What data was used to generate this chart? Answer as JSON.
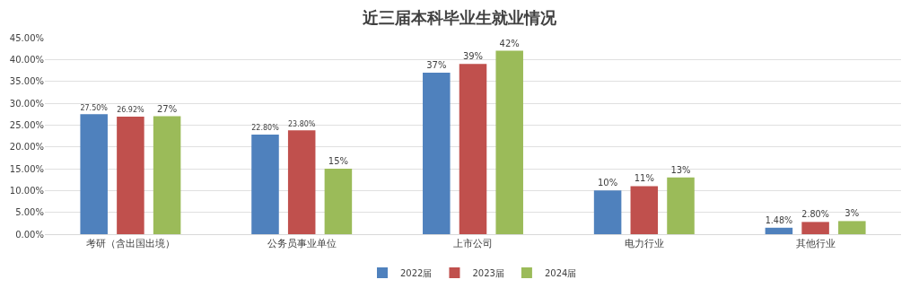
{
  "chart_data": {
    "type": "bar",
    "title": "近三届本科毕业生就业情况",
    "categories": [
      "考研（含出国出境）",
      "公务员事业单位",
      "上市公司",
      "电力行业",
      "其他行业"
    ],
    "series": [
      {
        "name": "2022届",
        "color": "#4f81bd",
        "values": [
          27.5,
          22.8,
          37,
          10,
          1.48
        ],
        "value_labels": [
          "27.50%",
          "22.80%",
          "37%",
          "10%",
          "1.48%"
        ]
      },
      {
        "name": "2023届",
        "color": "#c0504d",
        "values": [
          26.92,
          23.8,
          39,
          11,
          2.8
        ],
        "value_labels": [
          "26.92%",
          "23.80%",
          "39%",
          "11%",
          "2.80%"
        ]
      },
      {
        "name": "2024届",
        "color": "#9bbb59",
        "values": [
          27,
          15,
          42,
          13,
          3
        ],
        "value_labels": [
          "27%",
          "15%",
          "42%",
          "13%",
          "3%"
        ]
      }
    ],
    "ylim": [
      0,
      45
    ],
    "yticks": [
      {
        "value": 0,
        "label": "0.00%"
      },
      {
        "value": 5,
        "label": "5.00%"
      },
      {
        "value": 10,
        "label": "10.00%"
      },
      {
        "value": 15,
        "label": "15.00%"
      },
      {
        "value": 20,
        "label": "20.00%"
      },
      {
        "value": 25,
        "label": "25.00%"
      },
      {
        "value": 30,
        "label": "30.00%"
      },
      {
        "value": 35,
        "label": "35.00%"
      },
      {
        "value": 40,
        "label": "40.00%"
      },
      {
        "value": 45,
        "label": "45.00%"
      }
    ],
    "grid": "y",
    "legend": "bottom"
  }
}
